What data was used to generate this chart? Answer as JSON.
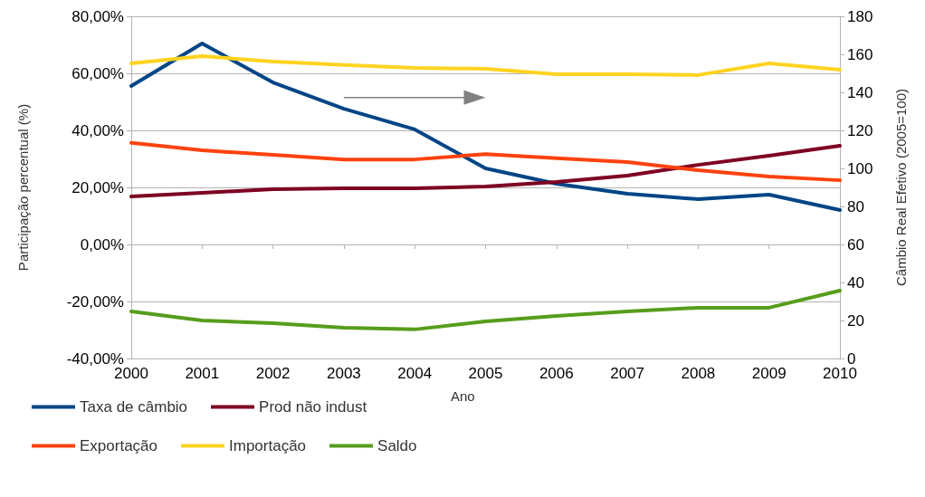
{
  "chart_data": {
    "type": "line",
    "xlabel": "Ano",
    "ylabel": "Participação percentual (%)",
    "y2label": "Câmbio Real Efetivo (2005=100)",
    "categories": [
      "2000",
      "2001",
      "2002",
      "2003",
      "2004",
      "2005",
      "2006",
      "2007",
      "2008",
      "2009",
      "2010"
    ],
    "series": [
      {
        "name": "Taxa de câmbio",
        "color": "#004586",
        "axis": "y2",
        "values": [
          143.3,
          165.7,
          145.2,
          131.4,
          120.5,
          100,
          91.9,
          86.7,
          83.8,
          86.2,
          78.1
        ]
      },
      {
        "name": "Prod não indust",
        "color": "#7e0021",
        "values": [
          16.8,
          18.1,
          19.4,
          19.7,
          19.7,
          20.3,
          21.9,
          24.1,
          27.9,
          31.1,
          34.6
        ]
      },
      {
        "name": "Exportação",
        "color": "#ff420e",
        "values": [
          35.6,
          33.0,
          31.4,
          29.8,
          29.8,
          31.7,
          30.2,
          28.9,
          26.0,
          23.8,
          22.5
        ]
      },
      {
        "name": "Importação",
        "color": "#ffd320",
        "values": [
          63.5,
          66.0,
          64.1,
          62.9,
          61.9,
          61.6,
          59.7,
          59.7,
          59.4,
          63.5,
          61.3
        ]
      },
      {
        "name": "Saldo",
        "color": "#579d1c",
        "values": [
          -23.5,
          -26.7,
          -27.6,
          -29.2,
          -29.8,
          -27.0,
          -25.1,
          -23.5,
          -22.2,
          -22.2,
          -16.2
        ]
      }
    ],
    "ylim": [
      -40,
      80
    ],
    "yticks": [
      {
        "value": -40,
        "label": "-40,00%"
      },
      {
        "value": -20,
        "label": "-20,00%"
      },
      {
        "value": 0,
        "label": "0,00%"
      },
      {
        "value": 20,
        "label": "20,00%"
      },
      {
        "value": 40,
        "label": "40,00%"
      },
      {
        "value": 60,
        "label": "60,00%"
      },
      {
        "value": 80,
        "label": "80,00%"
      }
    ],
    "y2lim": [
      0,
      180
    ],
    "y2ticks": [
      0,
      20,
      40,
      60,
      80,
      100,
      120,
      140,
      160,
      180
    ],
    "grid": "y",
    "legend": "bottom left",
    "marker": "none",
    "line_style": "solid"
  }
}
